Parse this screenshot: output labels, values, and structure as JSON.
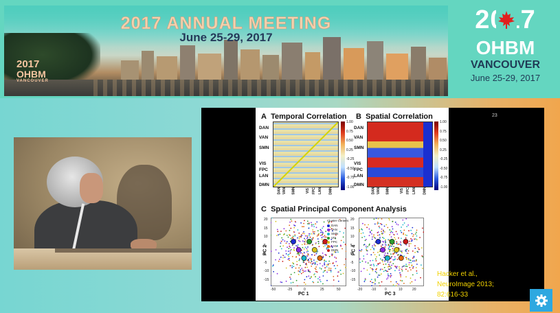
{
  "banner": {
    "title": "2017 ANNUAL MEETING",
    "dates": "June 25-29, 2017",
    "small_logo": {
      "year": "2017",
      "org": "OHBM",
      "city": "VANCOUVER"
    }
  },
  "logo_panel": {
    "year": "2017",
    "org": "OHBM",
    "city": "VANCOUVER",
    "dates": "June 25-29, 2017"
  },
  "slide": {
    "slide_number": "23",
    "panel_a": {
      "letter": "A",
      "title": "Temporal Correlation"
    },
    "panel_b": {
      "letter": "B",
      "title": "Spatial Correlation"
    },
    "panel_c": {
      "letter": "C",
      "title": "Spatial Principal Component Analysis"
    },
    "network_labels": [
      "DAN",
      "VAN",
      "SMN",
      "VIS",
      "FPC",
      "LAN",
      "DMN"
    ],
    "colorbar_ticks": [
      "1.00",
      "0.75",
      "0.50",
      "0.25",
      "-0.25",
      "-0.50",
      "-0.75",
      "-1.00"
    ],
    "pc_plot_left": {
      "ylabel": "PC 2",
      "xlabel": "PC 1",
      "xticks": [
        "-50",
        "-25",
        "0",
        "25",
        "50"
      ],
      "yticks": [
        "20",
        "15",
        "10",
        "5",
        "0",
        "-5",
        "-10",
        "-15"
      ]
    },
    "pc_plot_right": {
      "ylabel": "PC 4",
      "xlabel": "PC 3",
      "xticks": [
        "-20",
        "-10",
        "0",
        "10",
        "20"
      ],
      "yticks": [
        "20",
        "15",
        "10",
        "5",
        "0",
        "-5",
        "-10",
        "-15"
      ]
    },
    "legend_title": "Cluster Centers",
    "legend_items": [
      "DAN",
      "VAN",
      "SMN",
      "VIS",
      "FPC",
      "LAN",
      "DMN"
    ],
    "legend_colors": [
      "#1b2fd1",
      "#8a2be2",
      "#19b5c9",
      "#2e9b2e",
      "#d6c21a",
      "#e06a10",
      "#c81a1a"
    ],
    "citation": [
      "Hacker et al.,",
      "NeuroImage 2013;",
      "82:616-33"
    ]
  },
  "controls": {
    "settings_icon": "gear-icon"
  }
}
